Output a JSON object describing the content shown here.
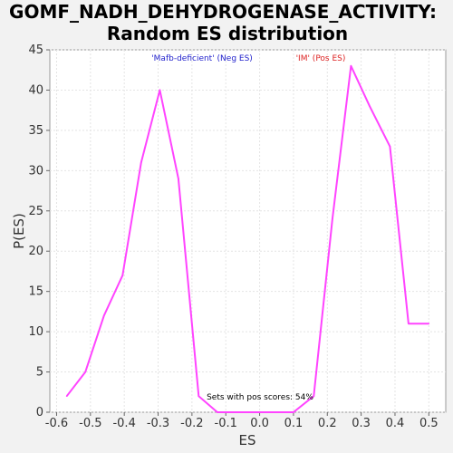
{
  "chart_data": {
    "type": "line",
    "title_line1": "GOMF_NADH_DEHYDROGENASE_ACTIVITY:",
    "title_line2": "Random ES distribution",
    "xlabel": "ES",
    "ylabel": "P(ES)",
    "xlim": [
      -0.62,
      0.55
    ],
    "ylim": [
      0,
      45
    ],
    "xticks": [
      -0.6,
      -0.5,
      -0.4,
      -0.3,
      -0.2,
      -0.1,
      0.0,
      0.1,
      0.2,
      0.3,
      0.4,
      0.5
    ],
    "yticks": [
      0,
      5,
      10,
      15,
      20,
      25,
      30,
      35,
      40,
      45
    ],
    "grid": true,
    "series": [
      {
        "color": "#ff44ff",
        "x": [
          -0.57,
          -0.515,
          -0.46,
          -0.405,
          -0.35,
          -0.295,
          -0.24,
          -0.18,
          -0.125,
          -0.07,
          -0.015,
          0.04,
          0.1,
          0.16,
          0.215,
          0.27,
          0.325,
          0.385,
          0.44,
          0.5
        ],
        "y": [
          2,
          5,
          12,
          17,
          31,
          40,
          29,
          2,
          0,
          0,
          0,
          0,
          0,
          2,
          24,
          43,
          38,
          33,
          11,
          11
        ]
      }
    ],
    "annotations": {
      "neg_label": "'Mafb-deficient' (Neg ES)",
      "neg_color": "#2222cc",
      "pos_label": "'IM' (Pos ES)",
      "pos_color": "#dd2222",
      "pos_scores_text": "Sets with pos scores: 54%"
    }
  }
}
